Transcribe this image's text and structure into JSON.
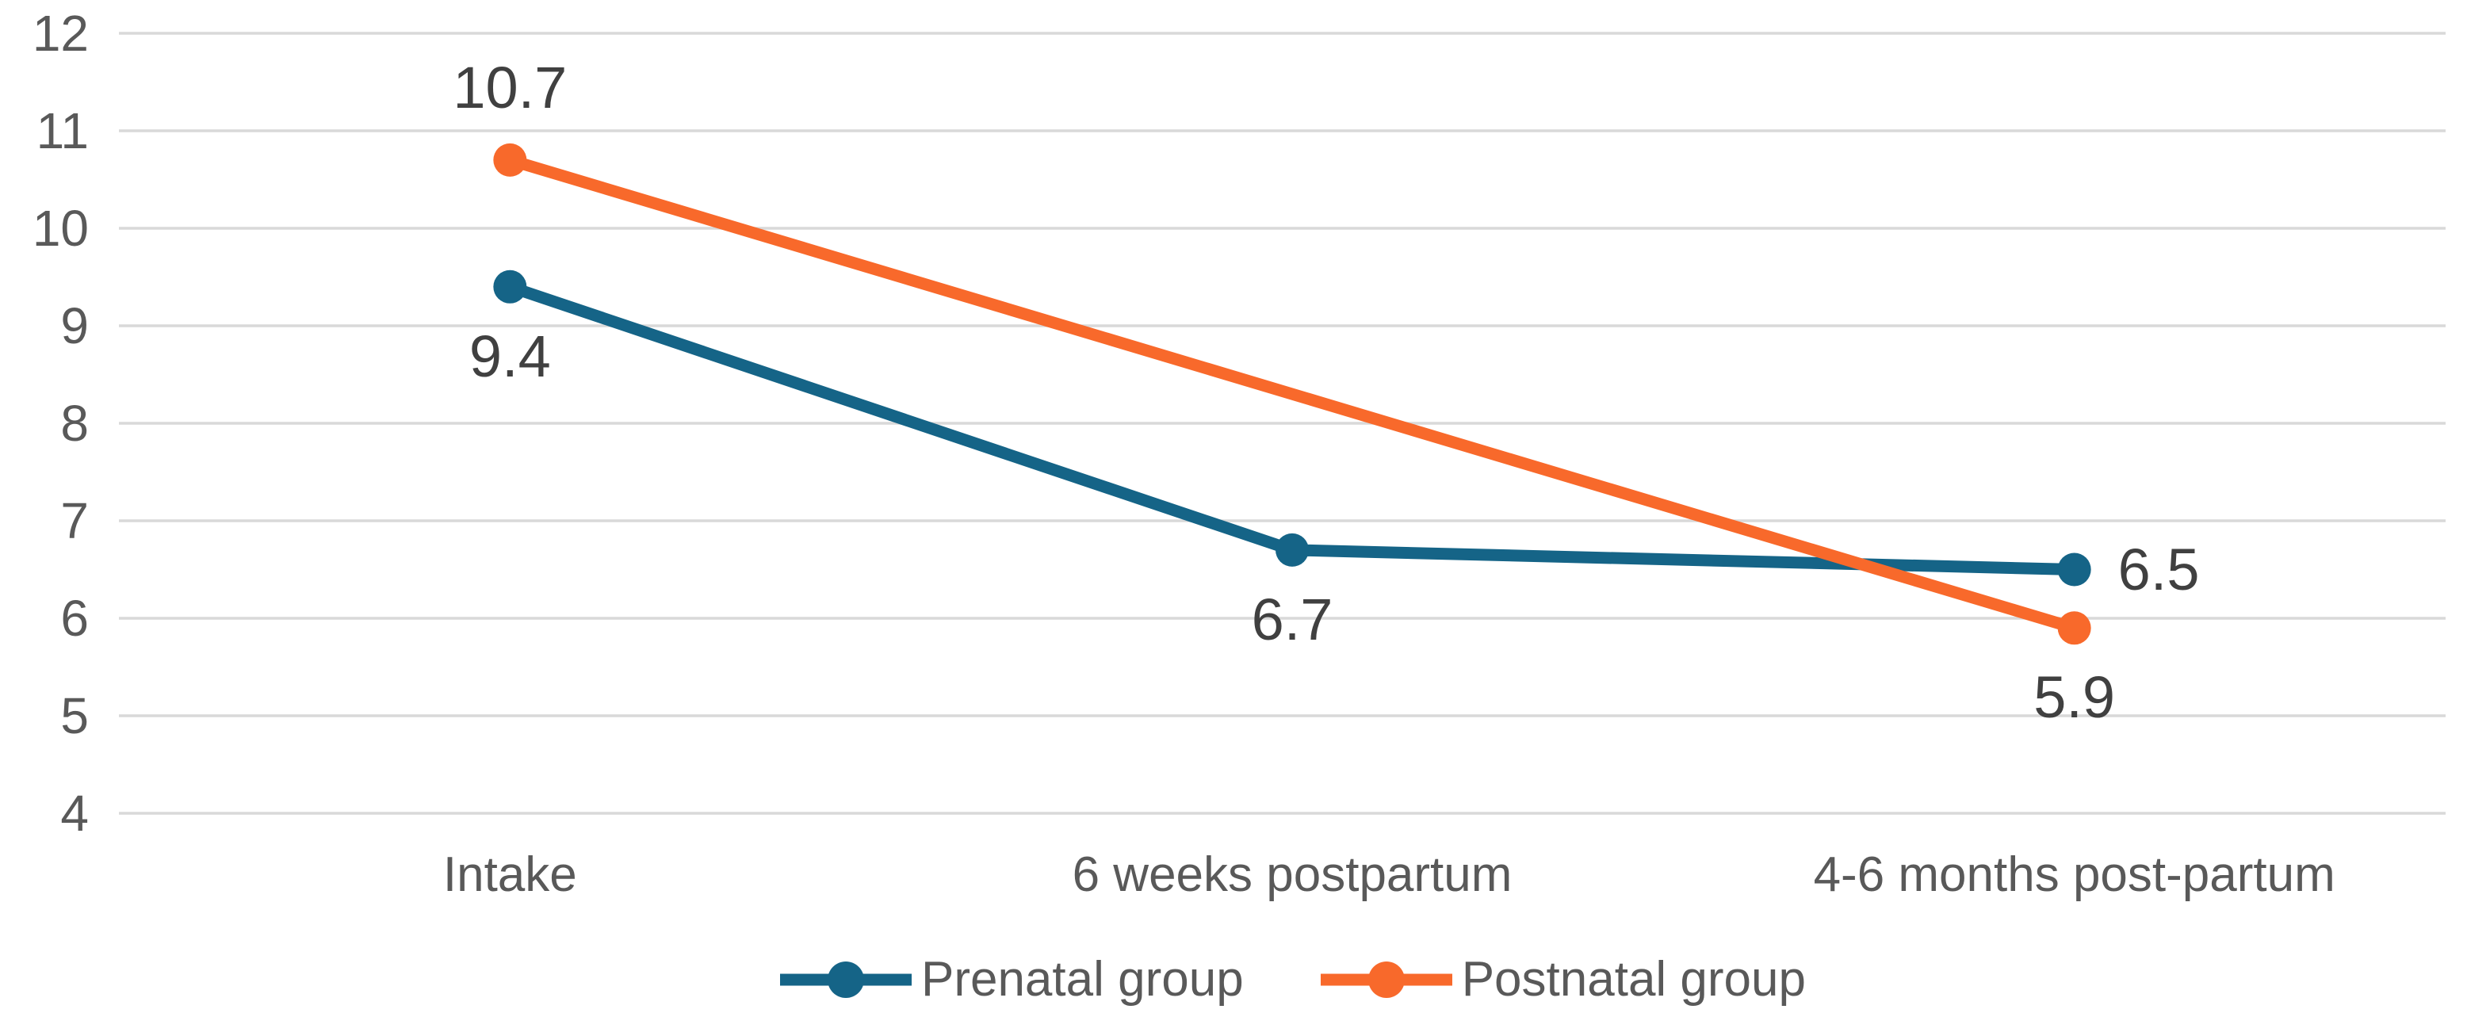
{
  "chart_data": {
    "type": "line",
    "title": "",
    "xlabel": "",
    "ylabel": "",
    "categories": [
      "Intake",
      "6 weeks postpartum",
      "4-6 months post-partum"
    ],
    "series": [
      {
        "name": "Prenatal group",
        "color": "#156487",
        "values": [
          9.4,
          6.7,
          6.5
        ],
        "point_labels": [
          "9.4",
          "6.7",
          "6.5"
        ],
        "label_positions": [
          "below",
          "below",
          "right"
        ]
      },
      {
        "name": "Postnatal group",
        "color": "#F8692B",
        "values": [
          10.7,
          null,
          5.9
        ],
        "point_labels": [
          "10.7",
          "",
          "5.9"
        ],
        "label_positions": [
          "above",
          "",
          "below"
        ]
      }
    ],
    "yticks": [
      12,
      11,
      10,
      9,
      8,
      7,
      6,
      5,
      4
    ],
    "ylim": [
      4,
      12
    ],
    "grid": "horizontal-gridlines-only",
    "gridline_color": "#D9D9D9",
    "axis_text_color": "#595959",
    "data_label_color": "#404040",
    "legend_position": "bottom"
  }
}
